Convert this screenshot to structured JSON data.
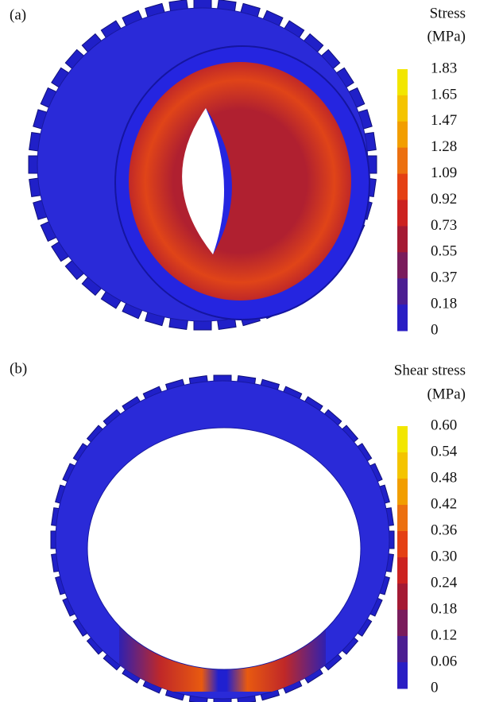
{
  "panels": [
    {
      "label": "(a)",
      "legend": {
        "title": [
          "Stress",
          "(MPa)"
        ],
        "ticks": [
          "1.83",
          "1.65",
          "1.47",
          "1.28",
          "1.09",
          "0.92",
          "0.73",
          "0.55",
          "0.37",
          "0.18",
          "0"
        ]
      }
    },
    {
      "label": "(b)",
      "legend": {
        "title": [
          "Shear stress",
          "(MPa)"
        ],
        "ticks": [
          "0.60",
          "0.54",
          "0.48",
          "0.42",
          "0.36",
          "0.30",
          "0.24",
          "0.18",
          "0.12",
          "0.06",
          "0"
        ]
      }
    }
  ]
}
